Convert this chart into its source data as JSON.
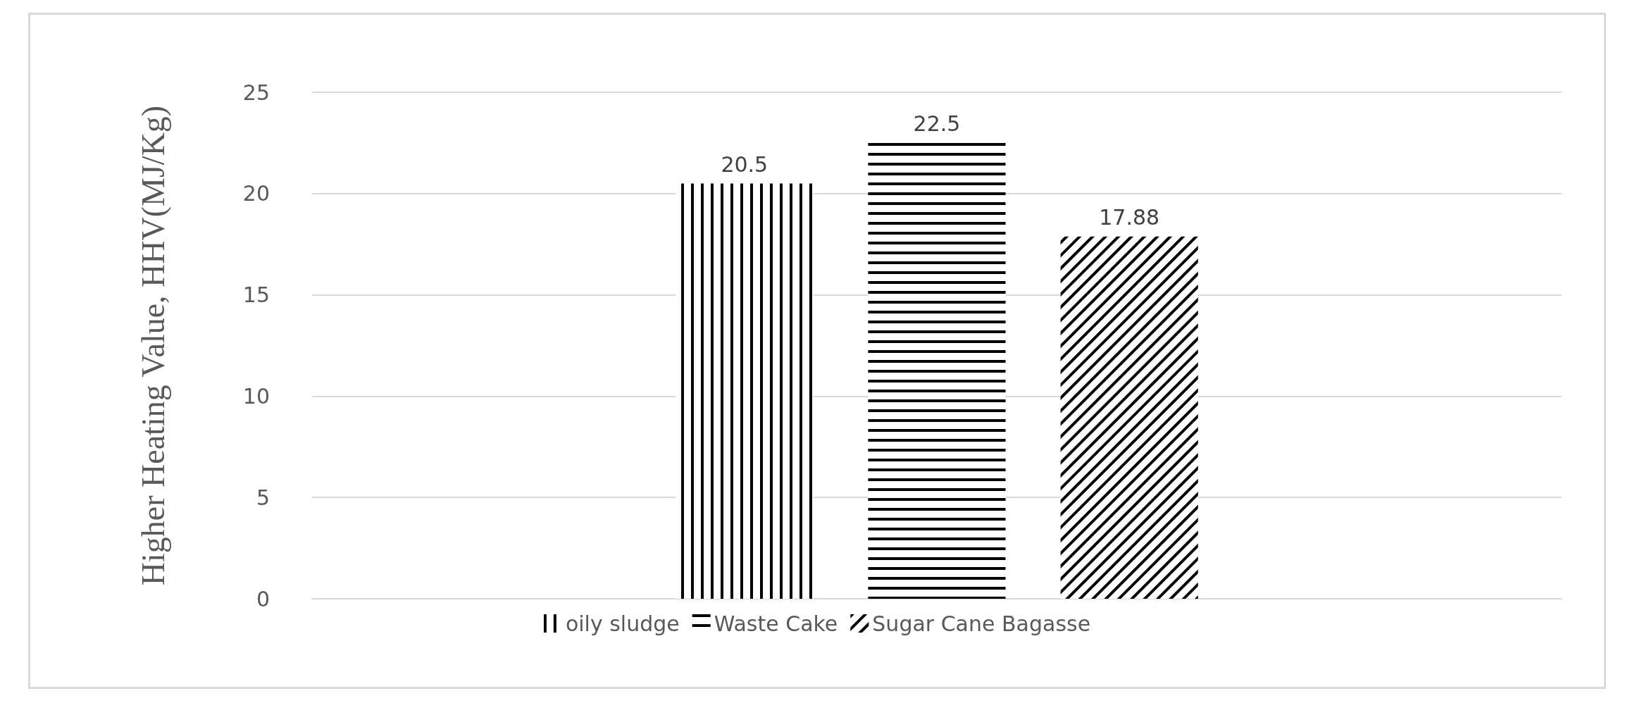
{
  "chart_data": {
    "type": "bar",
    "ylabel": "Higher Heating Value, HHV(MJ/Kg)",
    "categories": [
      null
    ],
    "series": [
      {
        "name": "oily sludge",
        "color": "#000000",
        "values": [
          20.5
        ]
      },
      {
        "name": "Waste Cake",
        "color": "#000000",
        "values": [
          22.5
        ]
      },
      {
        "name": "Sugar Cane Bagasse",
        "color": "#000000",
        "values": [
          17.88
        ]
      }
    ],
    "ylim": [
      0,
      25
    ],
    "yticks": [
      0,
      5,
      10,
      15,
      20,
      25
    ],
    "grid": "y",
    "legend": "bottom",
    "data_labels": true
  }
}
